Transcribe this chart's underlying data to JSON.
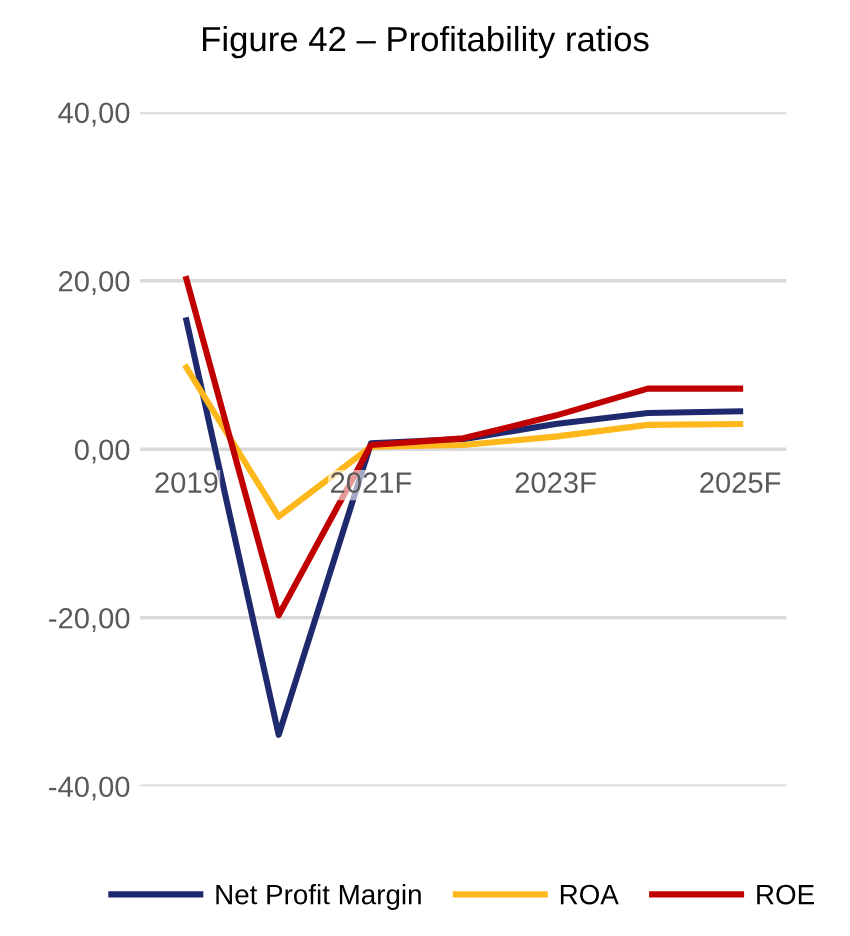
{
  "chart_data": {
    "type": "line",
    "title": "Figure 42 – Profitability ratios",
    "categories": [
      "2019",
      null,
      "2021F",
      null,
      "2023F",
      null,
      "2025F"
    ],
    "series": [
      {
        "name": "Net Profit Margin",
        "color": "#1f2a6e",
        "values": [
          15.3,
          -33.9,
          0.7,
          1.2,
          3.0,
          4.3,
          4.5
        ]
      },
      {
        "name": "ROA",
        "color": "#ffb81c",
        "values": [
          9.7,
          -8.0,
          0.3,
          0.5,
          1.5,
          2.9,
          3.0
        ]
      },
      {
        "name": "ROE",
        "color": "#c00000",
        "values": [
          20.2,
          -19.7,
          0.5,
          1.3,
          4.0,
          7.2,
          7.2
        ]
      }
    ],
    "ylim": [
      -40,
      40
    ],
    "yticks": [
      {
        "value": -40,
        "label": "-40,00"
      },
      {
        "value": -20,
        "label": "-20,00"
      },
      {
        "value": 0,
        "label": "0,00"
      },
      {
        "value": 20,
        "label": "20,00"
      },
      {
        "value": 40,
        "label": "40,00"
      }
    ],
    "grid": "y",
    "legend": "bottom",
    "marker": "none",
    "line_style": "solid"
  }
}
